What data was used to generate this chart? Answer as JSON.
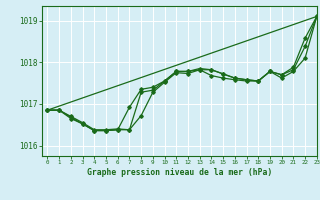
{
  "xlabel": "Graphe pression niveau de la mer (hPa)",
  "ylim": [
    1015.75,
    1019.35
  ],
  "xlim": [
    -0.5,
    23
  ],
  "yticks": [
    1016,
    1017,
    1018,
    1019
  ],
  "xtick_labels": [
    "0",
    "1",
    "2",
    "3",
    "4",
    "5",
    "6",
    "7",
    "8",
    "9",
    "10",
    "11",
    "12",
    "13",
    "14",
    "15",
    "16",
    "17",
    "18",
    "19",
    "20",
    "21",
    "22",
    "23"
  ],
  "xticks": [
    0,
    1,
    2,
    3,
    4,
    5,
    6,
    7,
    8,
    9,
    10,
    11,
    12,
    13,
    14,
    15,
    16,
    17,
    18,
    19,
    20,
    21,
    22,
    23
  ],
  "bg_color": "#d6eef5",
  "grid_color": "#ffffff",
  "line_color": "#1a6b1a",
  "line1": [
    1016.85,
    1016.85,
    1016.7,
    1016.55,
    1016.38,
    1016.38,
    1016.4,
    1016.38,
    1016.72,
    1017.28,
    1017.52,
    1017.75,
    1017.73,
    1017.82,
    1017.82,
    1017.72,
    1017.62,
    1017.58,
    1017.55,
    1017.78,
    1017.62,
    1017.78,
    1018.1,
    1019.1
  ],
  "line2": [
    1016.85,
    1016.85,
    1016.68,
    1016.52,
    1016.36,
    1016.36,
    1016.38,
    1016.92,
    1017.35,
    1017.4,
    1017.55,
    1017.78,
    1017.78,
    1017.85,
    1017.82,
    1017.72,
    1017.62,
    1017.58,
    1017.55,
    1017.78,
    1017.7,
    1017.82,
    1018.38,
    1019.1
  ],
  "line3_x": [
    0,
    23
  ],
  "line3_y": [
    1016.85,
    1019.1
  ],
  "line4": [
    1016.85,
    1016.85,
    1016.65,
    1016.52,
    1016.36,
    1016.36,
    1016.38,
    1016.38,
    1017.28,
    1017.33,
    1017.55,
    1017.78,
    1017.78,
    1017.82,
    1017.68,
    1017.62,
    1017.58,
    1017.55,
    1017.55,
    1017.78,
    1017.7,
    1017.88,
    1018.58,
    1019.1
  ]
}
